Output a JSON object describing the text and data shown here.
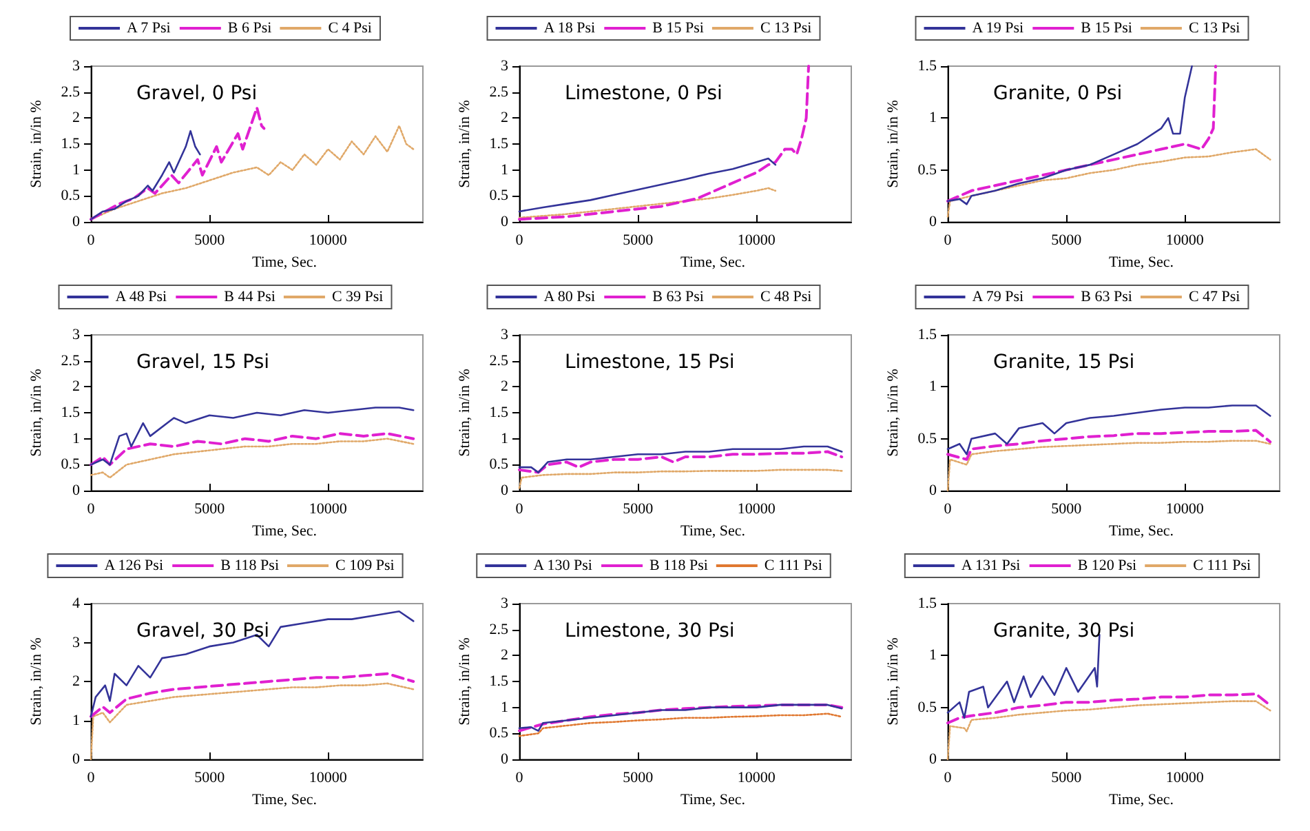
{
  "chart_data": [
    {
      "type": "line",
      "title": "Gravel, 0 Psi",
      "xlabel": "Time, Sec.",
      "ylabel": "Strain, in/in %",
      "xlim": [
        0,
        14000
      ],
      "xticks": [
        0,
        5000,
        10000
      ],
      "ylim": [
        0,
        3
      ],
      "yticks": [
        0,
        0.5,
        1,
        1.5,
        2,
        2.5,
        3
      ],
      "grid": false,
      "legend": "top",
      "marker": "none",
      "series": [
        {
          "name": "A 7 Psi",
          "color": "#333399",
          "line_style": "solid",
          "x": [
            0,
            500,
            1000,
            1500,
            2000,
            2400,
            2600,
            3000,
            3300,
            3500,
            4000,
            4200,
            4400,
            4600
          ],
          "values": [
            0.05,
            0.2,
            0.25,
            0.4,
            0.5,
            0.7,
            0.6,
            0.9,
            1.15,
            0.95,
            1.45,
            1.75,
            1.45,
            1.3
          ]
        },
        {
          "name": "B 6 Psi",
          "color": "#e020d0",
          "line_style": "dashed",
          "x": [
            0,
            600,
            1200,
            1800,
            2400,
            2700,
            3400,
            3700,
            4500,
            4700,
            5300,
            5500,
            6200,
            6400,
            7000,
            7200,
            7300
          ],
          "values": [
            0.05,
            0.2,
            0.35,
            0.45,
            0.65,
            0.55,
            0.9,
            0.75,
            1.2,
            0.9,
            1.45,
            1.15,
            1.7,
            1.4,
            2.2,
            1.85,
            1.8
          ]
        },
        {
          "name": "C 4 Psi",
          "color": "#e0a868",
          "line_style": "dotted",
          "x": [
            0,
            1000,
            2000,
            3000,
            4000,
            5000,
            6000,
            7000,
            7500,
            8000,
            8500,
            9000,
            9500,
            10000,
            10500,
            11000,
            11500,
            12000,
            12500,
            13000,
            13300,
            13600
          ],
          "values": [
            0.05,
            0.25,
            0.4,
            0.55,
            0.65,
            0.8,
            0.95,
            1.05,
            0.9,
            1.15,
            1.0,
            1.3,
            1.1,
            1.4,
            1.2,
            1.55,
            1.3,
            1.65,
            1.35,
            1.85,
            1.5,
            1.4
          ]
        }
      ]
    },
    {
      "type": "line",
      "title": "Limestone, 0 Psi",
      "xlabel": "Time, Sec.",
      "ylabel": "Strain, in/in %",
      "xlim": [
        0,
        14000
      ],
      "xticks": [
        0,
        5000,
        10000
      ],
      "ylim": [
        0,
        3
      ],
      "yticks": [
        0,
        0.5,
        1,
        1.5,
        2,
        2.5,
        3
      ],
      "grid": false,
      "legend": "top",
      "marker": "none",
      "series": [
        {
          "name": "A 18 Psi",
          "color": "#333399",
          "line_style": "solid",
          "x": [
            0,
            1000,
            2000,
            3000,
            4000,
            5000,
            6000,
            7000,
            8000,
            9000,
            10000,
            10500,
            10800
          ],
          "values": [
            0.2,
            0.28,
            0.35,
            0.42,
            0.52,
            0.62,
            0.72,
            0.82,
            0.93,
            1.02,
            1.15,
            1.22,
            1.1
          ]
        },
        {
          "name": "B 15 Psi",
          "color": "#e020d0",
          "line_style": "dashed",
          "x": [
            0,
            2000,
            4000,
            6000,
            7500,
            8500,
            9500,
            10000,
            10500,
            10800,
            11200,
            11500,
            11700,
            11900,
            12100,
            12200
          ],
          "values": [
            0.05,
            0.1,
            0.2,
            0.3,
            0.45,
            0.65,
            0.85,
            0.95,
            1.1,
            1.15,
            1.4,
            1.4,
            1.3,
            1.6,
            2.0,
            3.0
          ]
        },
        {
          "name": "C 13 Psi",
          "color": "#e0a868",
          "line_style": "dotted",
          "x": [
            0,
            2000,
            4000,
            6000,
            8000,
            9000,
            10000,
            10500,
            10800
          ],
          "values": [
            0.08,
            0.15,
            0.25,
            0.35,
            0.45,
            0.52,
            0.6,
            0.65,
            0.6
          ]
        }
      ]
    },
    {
      "type": "line",
      "title": "Granite, 0 Psi",
      "xlabel": "Time, Sec.",
      "ylabel": "Strain, in/in %",
      "xlim": [
        0,
        14000
      ],
      "xticks": [
        0,
        5000,
        10000
      ],
      "ylim": [
        0,
        1.5
      ],
      "yticks": [
        0,
        0.5,
        1,
        1.5
      ],
      "grid": false,
      "legend": "top",
      "marker": "none",
      "series": [
        {
          "name": "A 19 Psi",
          "color": "#333399",
          "line_style": "solid",
          "x": [
            0,
            500,
            800,
            1000,
            2000,
            3000,
            4000,
            5000,
            6000,
            7000,
            8000,
            9000,
            9300,
            9500,
            9800,
            10000,
            10300
          ],
          "values": [
            0.2,
            0.22,
            0.17,
            0.25,
            0.3,
            0.37,
            0.42,
            0.5,
            0.55,
            0.65,
            0.75,
            0.9,
            1.0,
            0.85,
            0.85,
            1.2,
            1.5
          ]
        },
        {
          "name": "B 15 Psi",
          "color": "#e020d0",
          "line_style": "dashed",
          "x": [
            0,
            1000,
            2000,
            3000,
            4000,
            5000,
            6000,
            7000,
            8000,
            9000,
            10000,
            10700,
            11000,
            11200,
            11300
          ],
          "values": [
            0.2,
            0.3,
            0.35,
            0.4,
            0.45,
            0.5,
            0.55,
            0.6,
            0.65,
            0.7,
            0.75,
            0.7,
            0.8,
            0.9,
            1.5
          ]
        },
        {
          "name": "C 13 Psi",
          "color": "#e0a868",
          "line_style": "dotted",
          "x": [
            0,
            100,
            1000,
            2000,
            3000,
            4000,
            5000,
            6000,
            7000,
            8000,
            9000,
            10000,
            11000,
            12000,
            13000,
            13600
          ],
          "values": [
            0.05,
            0.2,
            0.25,
            0.3,
            0.35,
            0.4,
            0.42,
            0.47,
            0.5,
            0.55,
            0.58,
            0.62,
            0.63,
            0.67,
            0.7,
            0.6
          ]
        }
      ]
    },
    {
      "type": "line",
      "title": "Gravel, 15 Psi",
      "xlabel": "Time, Sec.",
      "ylabel": "Strain, in/in %",
      "xlim": [
        0,
        14000
      ],
      "xticks": [
        0,
        5000,
        10000
      ],
      "ylim": [
        0,
        3
      ],
      "yticks": [
        0,
        0.5,
        1,
        1.5,
        2,
        2.5,
        3
      ],
      "grid": false,
      "legend": "top",
      "marker": "none",
      "series": [
        {
          "name": "A 48 Psi",
          "color": "#333399",
          "line_style": "solid",
          "x": [
            0,
            500,
            800,
            1200,
            1500,
            1700,
            2200,
            2500,
            3500,
            4000,
            5000,
            6000,
            7000,
            8000,
            9000,
            10000,
            11000,
            12000,
            13000,
            13600
          ],
          "values": [
            0.5,
            0.6,
            0.5,
            1.05,
            1.1,
            0.85,
            1.3,
            1.05,
            1.4,
            1.3,
            1.45,
            1.4,
            1.5,
            1.45,
            1.55,
            1.5,
            1.55,
            1.6,
            1.6,
            1.55
          ]
        },
        {
          "name": "B 44 Psi",
          "color": "#e020d0",
          "line_style": "dashed",
          "x": [
            0,
            500,
            800,
            1500,
            2500,
            3500,
            4500,
            5500,
            6500,
            7500,
            8500,
            9500,
            10500,
            11500,
            12500,
            13600
          ],
          "values": [
            0.5,
            0.65,
            0.5,
            0.8,
            0.9,
            0.85,
            0.95,
            0.9,
            1.0,
            0.95,
            1.05,
            1.0,
            1.1,
            1.05,
            1.1,
            1.0
          ]
        },
        {
          "name": "C 39 Psi",
          "color": "#e0a868",
          "line_style": "dotted",
          "x": [
            0,
            500,
            800,
            1500,
            2500,
            3500,
            4500,
            5500,
            6500,
            7500,
            8500,
            9500,
            10500,
            11500,
            12500,
            13600
          ],
          "values": [
            0.3,
            0.35,
            0.25,
            0.5,
            0.6,
            0.7,
            0.75,
            0.8,
            0.85,
            0.85,
            0.9,
            0.9,
            0.95,
            0.95,
            1.0,
            0.9
          ]
        }
      ]
    },
    {
      "type": "line",
      "title": "Limestone, 15 Psi",
      "xlabel": "Time, Sec.",
      "ylabel": "Strain, in/in %",
      "xlim": [
        0,
        14000
      ],
      "xticks": [
        0,
        5000,
        10000
      ],
      "ylim": [
        0,
        3
      ],
      "yticks": [
        0,
        0.5,
        1,
        1.5,
        2,
        2.5,
        3
      ],
      "grid": false,
      "legend": "top",
      "marker": "none",
      "series": [
        {
          "name": "A 80 Psi",
          "color": "#333399",
          "line_style": "solid",
          "x": [
            0,
            500,
            800,
            1200,
            2000,
            3000,
            4000,
            5000,
            6000,
            7000,
            8000,
            9000,
            10000,
            11000,
            12000,
            13000,
            13600
          ],
          "values": [
            0.45,
            0.45,
            0.35,
            0.55,
            0.6,
            0.6,
            0.65,
            0.7,
            0.7,
            0.75,
            0.75,
            0.8,
            0.8,
            0.8,
            0.85,
            0.85,
            0.75
          ]
        },
        {
          "name": "B 63 Psi",
          "color": "#e020d0",
          "line_style": "dashed",
          "x": [
            0,
            800,
            1200,
            2000,
            2500,
            3000,
            4000,
            5000,
            6000,
            6500,
            7000,
            8000,
            9000,
            10000,
            11000,
            12000,
            13000,
            13600
          ],
          "values": [
            0.4,
            0.35,
            0.5,
            0.55,
            0.45,
            0.55,
            0.6,
            0.6,
            0.65,
            0.55,
            0.65,
            0.65,
            0.7,
            0.7,
            0.72,
            0.72,
            0.75,
            0.65
          ]
        },
        {
          "name": "C 48 Psi",
          "color": "#e0a868",
          "line_style": "dotted",
          "x": [
            0,
            100,
            1000,
            2000,
            3000,
            4000,
            5000,
            6000,
            7000,
            8000,
            9000,
            10000,
            11000,
            12000,
            13000,
            13600
          ],
          "values": [
            0.05,
            0.25,
            0.3,
            0.32,
            0.32,
            0.35,
            0.35,
            0.37,
            0.37,
            0.38,
            0.38,
            0.38,
            0.4,
            0.4,
            0.4,
            0.38
          ]
        }
      ]
    },
    {
      "type": "line",
      "title": "Granite, 15 Psi",
      "xlabel": "Time, Sec.",
      "ylabel": "Strain, in/in %",
      "xlim": [
        0,
        14000
      ],
      "xticks": [
        0,
        5000,
        10000
      ],
      "ylim": [
        0,
        1.5
      ],
      "yticks": [
        0,
        0.5,
        1,
        1.5
      ],
      "grid": false,
      "legend": "top",
      "marker": "none",
      "series": [
        {
          "name": "A 79 Psi",
          "color": "#333399",
          "line_style": "solid",
          "x": [
            0,
            500,
            800,
            1000,
            2000,
            2500,
            3000,
            4000,
            4500,
            5000,
            6000,
            7000,
            8000,
            9000,
            10000,
            11000,
            12000,
            13000,
            13600
          ],
          "values": [
            0.4,
            0.45,
            0.35,
            0.5,
            0.55,
            0.45,
            0.6,
            0.65,
            0.55,
            0.65,
            0.7,
            0.72,
            0.75,
            0.78,
            0.8,
            0.8,
            0.82,
            0.82,
            0.72
          ]
        },
        {
          "name": "B 63 Psi",
          "color": "#e020d0",
          "line_style": "dashed",
          "x": [
            0,
            800,
            1000,
            2000,
            3000,
            4000,
            5000,
            6000,
            7000,
            8000,
            9000,
            10000,
            11000,
            12000,
            13000,
            13600
          ],
          "values": [
            0.35,
            0.3,
            0.4,
            0.43,
            0.45,
            0.48,
            0.5,
            0.52,
            0.53,
            0.55,
            0.55,
            0.56,
            0.57,
            0.57,
            0.58,
            0.47
          ]
        },
        {
          "name": "C 47 Psi",
          "color": "#e0a868",
          "line_style": "dotted",
          "x": [
            0,
            100,
            800,
            1000,
            2000,
            3000,
            4000,
            5000,
            6000,
            7000,
            8000,
            9000,
            10000,
            11000,
            12000,
            13000,
            13600
          ],
          "values": [
            0,
            0.3,
            0.25,
            0.35,
            0.38,
            0.4,
            0.42,
            0.43,
            0.44,
            0.45,
            0.46,
            0.46,
            0.47,
            0.47,
            0.48,
            0.48,
            0.45
          ]
        }
      ]
    },
    {
      "type": "line",
      "title": "Gravel, 30 Psi",
      "xlabel": "Time, Sec.",
      "ylabel": "Strain, in/in %",
      "xlim": [
        0,
        14000
      ],
      "xticks": [
        0,
        5000,
        10000
      ],
      "ylim": [
        0,
        4
      ],
      "yticks": [
        0,
        1,
        2,
        3,
        4
      ],
      "grid": false,
      "legend": "top",
      "marker": "none",
      "series": [
        {
          "name": "A 126 Psi",
          "color": "#333399",
          "line_style": "solid",
          "x": [
            0,
            200,
            600,
            800,
            1000,
            1500,
            2000,
            2500,
            3000,
            4000,
            5000,
            6000,
            7000,
            7500,
            8000,
            9000,
            10000,
            11000,
            12000,
            13000,
            13600
          ],
          "values": [
            1.1,
            1.6,
            1.9,
            1.5,
            2.2,
            1.9,
            2.4,
            2.1,
            2.6,
            2.7,
            2.9,
            3.0,
            3.2,
            2.9,
            3.4,
            3.5,
            3.6,
            3.6,
            3.7,
            3.8,
            3.55
          ]
        },
        {
          "name": "B 118 Psi",
          "color": "#e020d0",
          "line_style": "dashed",
          "x": [
            0,
            500,
            800,
            1500,
            2500,
            3500,
            4500,
            5500,
            6500,
            7500,
            8500,
            9500,
            10500,
            11500,
            12500,
            13600
          ],
          "values": [
            1.1,
            1.35,
            1.2,
            1.55,
            1.7,
            1.8,
            1.85,
            1.9,
            1.95,
            2.0,
            2.05,
            2.1,
            2.1,
            2.15,
            2.2,
            2.0
          ]
        },
        {
          "name": "C 109 Psi",
          "color": "#e0a868",
          "line_style": "dotted",
          "x": [
            0,
            100,
            500,
            800,
            1500,
            2500,
            3500,
            4500,
            5500,
            6500,
            7500,
            8500,
            9500,
            10500,
            11500,
            12500,
            13600
          ],
          "values": [
            0,
            1.1,
            1.2,
            0.95,
            1.4,
            1.5,
            1.6,
            1.65,
            1.7,
            1.75,
            1.8,
            1.85,
            1.85,
            1.9,
            1.9,
            1.95,
            1.8
          ]
        }
      ]
    },
    {
      "type": "line",
      "title": "Limestone, 30 Psi",
      "xlabel": "Time, Sec.",
      "ylabel": "Strain, in/in %",
      "xlim": [
        0,
        14000
      ],
      "xticks": [
        0,
        5000,
        10000
      ],
      "ylim": [
        0,
        3
      ],
      "yticks": [
        0,
        0.5,
        1,
        1.5,
        2,
        2.5,
        3
      ],
      "grid": false,
      "legend": "top",
      "marker": "none",
      "series": [
        {
          "name": "A 130 Psi",
          "color": "#333399",
          "line_style": "solid",
          "x": [
            0,
            500,
            800,
            1000,
            2000,
            3000,
            4000,
            5000,
            6000,
            7000,
            8000,
            9000,
            10000,
            11000,
            12000,
            13000,
            13600
          ],
          "values": [
            0.6,
            0.62,
            0.55,
            0.7,
            0.75,
            0.8,
            0.85,
            0.9,
            0.95,
            0.95,
            1.0,
            1.0,
            1.0,
            1.05,
            1.05,
            1.05,
            0.98
          ]
        },
        {
          "name": "B 118 Psi",
          "color": "#e020d0",
          "line_style": "dashed",
          "x": [
            0,
            1000,
            2000,
            3000,
            4000,
            5000,
            6000,
            7000,
            8000,
            9000,
            10000,
            11000,
            12000,
            13000,
            13600
          ],
          "values": [
            0.55,
            0.68,
            0.75,
            0.82,
            0.87,
            0.9,
            0.95,
            0.98,
            1.0,
            1.02,
            1.03,
            1.05,
            1.05,
            1.05,
            1.0
          ]
        },
        {
          "name": "C 111 Psi",
          "color": "#e07830",
          "line_style": "dotted",
          "x": [
            0,
            800,
            1000,
            2000,
            3000,
            4000,
            5000,
            6000,
            7000,
            8000,
            9000,
            10000,
            11000,
            12000,
            13000,
            13600
          ],
          "values": [
            0.45,
            0.5,
            0.6,
            0.65,
            0.7,
            0.72,
            0.75,
            0.77,
            0.8,
            0.8,
            0.82,
            0.83,
            0.85,
            0.85,
            0.88,
            0.82
          ]
        }
      ]
    },
    {
      "type": "line",
      "title": "Granite, 30 Psi",
      "xlabel": "Time, Sec.",
      "ylabel": "Strain, in/in %",
      "xlim": [
        0,
        14000
      ],
      "xticks": [
        0,
        5000,
        10000
      ],
      "ylim": [
        0,
        1.5
      ],
      "yticks": [
        0,
        0.5,
        1,
        1.5
      ],
      "grid": false,
      "legend": "top",
      "marker": "none",
      "series": [
        {
          "name": "A 131 Psi",
          "color": "#333399",
          "line_style": "solid",
          "x": [
            0,
            500,
            700,
            900,
            1500,
            1700,
            2500,
            2800,
            3200,
            3500,
            4000,
            4500,
            5000,
            5500,
            6200,
            6300,
            6400
          ],
          "values": [
            0.45,
            0.55,
            0.4,
            0.65,
            0.7,
            0.5,
            0.75,
            0.55,
            0.8,
            0.6,
            0.8,
            0.62,
            0.88,
            0.65,
            0.88,
            0.7,
            1.2
          ]
        },
        {
          "name": "B 120 Psi",
          "color": "#e020d0",
          "line_style": "dashed",
          "x": [
            0,
            500,
            1000,
            2000,
            3000,
            4000,
            5000,
            6000,
            7000,
            8000,
            9000,
            10000,
            11000,
            12000,
            13000,
            13600
          ],
          "values": [
            0.35,
            0.4,
            0.42,
            0.45,
            0.5,
            0.52,
            0.55,
            0.55,
            0.57,
            0.58,
            0.6,
            0.6,
            0.62,
            0.62,
            0.63,
            0.52
          ]
        },
        {
          "name": "C 111 Psi",
          "color": "#e0a868",
          "line_style": "dotted",
          "x": [
            0,
            100,
            700,
            800,
            1000,
            2000,
            3000,
            4000,
            5000,
            6000,
            7000,
            8000,
            9000,
            10000,
            11000,
            12000,
            13000,
            13600
          ],
          "values": [
            0,
            0.32,
            0.3,
            0.27,
            0.38,
            0.4,
            0.43,
            0.45,
            0.47,
            0.48,
            0.5,
            0.52,
            0.53,
            0.54,
            0.55,
            0.56,
            0.56,
            0.47
          ]
        }
      ]
    }
  ]
}
